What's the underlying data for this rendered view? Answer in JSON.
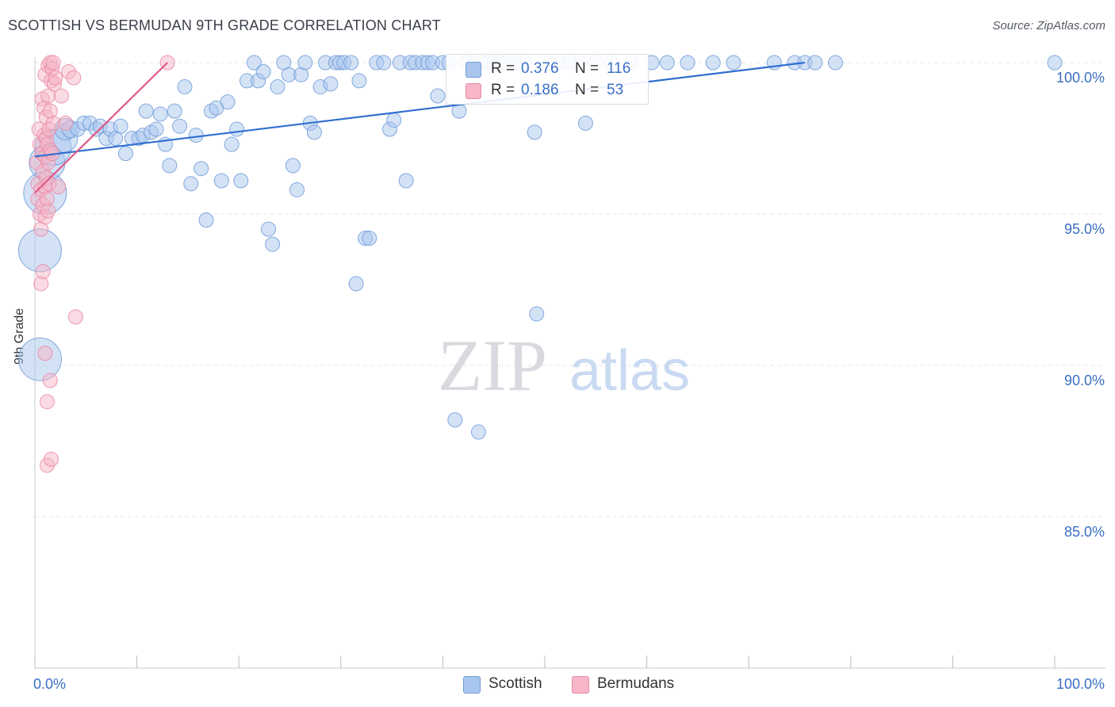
{
  "title": "SCOTTISH VS BERMUDAN 9TH GRADE CORRELATION CHART",
  "source": "Source: ZipAtlas.com",
  "watermark": {
    "zip": "ZIP",
    "atlas": "atlas"
  },
  "colors": {
    "scottish_fill": "#a9c6ee",
    "scottish_stroke": "#6f9bd8",
    "scottish_line": "#2f6fd0",
    "bermudan_fill": "#f6b6c8",
    "bermudan_stroke": "#e98aa5",
    "bermudan_line": "#e0588a",
    "tick_label": "#3b6fc4",
    "grid": "#e3e5ea"
  },
  "legend_top": [
    {
      "r_label": "R =",
      "r_value": "0.376",
      "n_label": "N =",
      "n_value": "116"
    },
    {
      "r_label": "R =",
      "r_value": "0.186",
      "n_label": "N =",
      "n_value": "53"
    }
  ],
  "legend_bottom": [
    {
      "label": "Scottish"
    },
    {
      "label": "Bermudans"
    }
  ],
  "chart_data": {
    "type": "scatter",
    "title": "SCOTTISH VS BERMUDAN 9TH GRADE CORRELATION CHART",
    "xlabel": "",
    "ylabel": "9th Grade",
    "xlim": [
      0,
      100
    ],
    "ylim": [
      80.0,
      100.8
    ],
    "x_tick_labels": [
      "0.0%",
      "100.0%"
    ],
    "y_ticks": [
      85.0,
      90.0,
      95.0,
      100.0
    ],
    "y_tick_labels": [
      "85.0%",
      "90.0%",
      "95.0%",
      "100.0%"
    ],
    "grid": true,
    "series": [
      {
        "name": "Scottish",
        "R": 0.376,
        "N": 116,
        "trendline": {
          "x": [
            0.0,
            75.5
          ],
          "y": [
            96.9,
            100.0
          ]
        },
        "points": [
          [
            0.5,
            93.8,
            3
          ],
          [
            0.5,
            90.2,
            3
          ],
          [
            1.0,
            95.7,
            3
          ],
          [
            1.2,
            96.7,
            2.5
          ],
          [
            1.8,
            97.2,
            2.5
          ],
          [
            2.8,
            97.5,
            2
          ],
          [
            3.0,
            97.8,
            1.5
          ],
          [
            3.5,
            97.8,
            1.2
          ],
          [
            4.2,
            97.8,
            1
          ],
          [
            4.8,
            98.0,
            1
          ],
          [
            5.4,
            98.0,
            1
          ],
          [
            6.0,
            97.8,
            1
          ],
          [
            6.4,
            97.9,
            1
          ],
          [
            7.0,
            97.5,
            1
          ],
          [
            7.4,
            97.8,
            1
          ],
          [
            7.9,
            97.5,
            1
          ],
          [
            8.4,
            97.9,
            1
          ],
          [
            8.9,
            97.0,
            1
          ],
          [
            9.5,
            97.5,
            1
          ],
          [
            10.2,
            97.5,
            1
          ],
          [
            10.6,
            97.6,
            1
          ],
          [
            10.9,
            98.4,
            1
          ],
          [
            11.4,
            97.7,
            1
          ],
          [
            11.9,
            97.8,
            1
          ],
          [
            12.3,
            98.3,
            1
          ],
          [
            12.8,
            97.3,
            1
          ],
          [
            13.2,
            96.6,
            1
          ],
          [
            13.7,
            98.4,
            1
          ],
          [
            14.2,
            97.9,
            1
          ],
          [
            14.7,
            99.2,
            1
          ],
          [
            15.3,
            96.0,
            1
          ],
          [
            15.8,
            97.6,
            1
          ],
          [
            16.3,
            96.5,
            1
          ],
          [
            16.8,
            94.8,
            1
          ],
          [
            17.3,
            98.4,
            1
          ],
          [
            17.8,
            98.5,
            1
          ],
          [
            18.3,
            96.1,
            1
          ],
          [
            18.9,
            98.7,
            1
          ],
          [
            19.3,
            97.3,
            1
          ],
          [
            19.8,
            97.8,
            1
          ],
          [
            20.2,
            96.1,
            1
          ],
          [
            20.8,
            99.4,
            1
          ],
          [
            21.5,
            100.0,
            1
          ],
          [
            21.9,
            99.4,
            1
          ],
          [
            22.4,
            99.7,
            1
          ],
          [
            22.9,
            94.5,
            1
          ],
          [
            23.3,
            94.0,
            1
          ],
          [
            23.8,
            99.2,
            1
          ],
          [
            24.4,
            100.0,
            1
          ],
          [
            24.9,
            99.6,
            1
          ],
          [
            25.3,
            96.6,
            1
          ],
          [
            25.7,
            95.8,
            1
          ],
          [
            26.1,
            99.6,
            1
          ],
          [
            26.5,
            100.0,
            1
          ],
          [
            27.0,
            98.0,
            1
          ],
          [
            27.4,
            97.7,
            1
          ],
          [
            28.0,
            99.2,
            1
          ],
          [
            28.5,
            100.0,
            1
          ],
          [
            29.0,
            99.3,
            1
          ],
          [
            29.5,
            100.0,
            1
          ],
          [
            29.9,
            100.0,
            1
          ],
          [
            30.3,
            100.0,
            1
          ],
          [
            31.0,
            100.0,
            1
          ],
          [
            31.5,
            92.7,
            1
          ],
          [
            31.8,
            99.4,
            1
          ],
          [
            32.4,
            94.2,
            1
          ],
          [
            32.8,
            94.2,
            1
          ],
          [
            33.5,
            100.0,
            1
          ],
          [
            34.2,
            100.0,
            1
          ],
          [
            34.8,
            97.8,
            1
          ],
          [
            35.2,
            98.1,
            1
          ],
          [
            35.8,
            100.0,
            1
          ],
          [
            36.4,
            96.1,
            1
          ],
          [
            36.8,
            100.0,
            1
          ],
          [
            37.3,
            100.0,
            1
          ],
          [
            38.0,
            100.0,
            1
          ],
          [
            38.5,
            100.0,
            1
          ],
          [
            39.0,
            100.0,
            1
          ],
          [
            39.5,
            98.9,
            1
          ],
          [
            40.0,
            100.0,
            1
          ],
          [
            40.6,
            100.0,
            1
          ],
          [
            41.2,
            88.2,
            1
          ],
          [
            41.6,
            98.4,
            1
          ],
          [
            42.3,
            100.0,
            1
          ],
          [
            43.0,
            100.0,
            1
          ],
          [
            43.5,
            87.8,
            1
          ],
          [
            44.0,
            100.0,
            1
          ],
          [
            44.5,
            100.0,
            1
          ],
          [
            45.0,
            100.0,
            1
          ],
          [
            45.5,
            100.0,
            1
          ],
          [
            46.2,
            100.0,
            1
          ],
          [
            47.0,
            100.0,
            1
          ],
          [
            48.0,
            100.0,
            1
          ],
          [
            49.0,
            97.7,
            1
          ],
          [
            49.2,
            91.7,
            1
          ],
          [
            50.5,
            100.0,
            1
          ],
          [
            51.5,
            100.0,
            1
          ],
          [
            52.5,
            100.0,
            1
          ],
          [
            53.5,
            100.0,
            1
          ],
          [
            54.0,
            98.0,
            1
          ],
          [
            55.0,
            100.0,
            1
          ],
          [
            56.5,
            100.0,
            1
          ],
          [
            58.5,
            100.0,
            1
          ],
          [
            60.5,
            100.0,
            1
          ],
          [
            62.0,
            100.0,
            1
          ],
          [
            64.0,
            100.0,
            1
          ],
          [
            66.5,
            100.0,
            1
          ],
          [
            68.5,
            100.0,
            1
          ],
          [
            72.5,
            100.0,
            1
          ],
          [
            74.5,
            100.0,
            1
          ],
          [
            75.5,
            100.0,
            1
          ],
          [
            76.5,
            100.0,
            1
          ],
          [
            78.5,
            100.0,
            1
          ],
          [
            100.0,
            100.0,
            1
          ]
        ]
      },
      {
        "name": "Bermudans",
        "R": 0.186,
        "N": 53,
        "trendline": {
          "x": [
            0.0,
            13.0
          ],
          "y": [
            95.7,
            100.0
          ]
        },
        "points": [
          [
            0.2,
            96.7,
            1
          ],
          [
            0.3,
            96.0,
            1
          ],
          [
            0.3,
            95.5,
            1
          ],
          [
            0.4,
            97.8,
            1
          ],
          [
            0.5,
            97.3,
            1
          ],
          [
            0.5,
            95.0,
            1
          ],
          [
            0.6,
            95.8,
            1
          ],
          [
            0.6,
            94.5,
            1
          ],
          [
            0.6,
            92.7,
            1
          ],
          [
            0.7,
            98.8,
            1
          ],
          [
            0.7,
            97.0,
            1
          ],
          [
            0.8,
            96.4,
            1
          ],
          [
            0.8,
            95.3,
            1
          ],
          [
            0.8,
            93.1,
            1
          ],
          [
            0.9,
            98.5,
            1
          ],
          [
            0.9,
            97.6,
            1
          ],
          [
            1.0,
            99.6,
            1
          ],
          [
            1.0,
            96.9,
            1
          ],
          [
            1.0,
            95.9,
            1
          ],
          [
            1.0,
            94.9,
            1
          ],
          [
            1.0,
            90.4,
            1
          ],
          [
            1.1,
            98.2,
            1
          ],
          [
            1.1,
            97.5,
            1
          ],
          [
            1.1,
            96.2,
            1
          ],
          [
            1.2,
            97.3,
            1
          ],
          [
            1.2,
            95.5,
            1
          ],
          [
            1.2,
            88.8,
            1
          ],
          [
            1.2,
            86.7,
            1
          ],
          [
            1.3,
            99.9,
            1
          ],
          [
            1.3,
            98.9,
            1
          ],
          [
            1.3,
            96.7,
            1
          ],
          [
            1.3,
            95.1,
            1
          ],
          [
            1.4,
            97.8,
            1
          ],
          [
            1.4,
            96.0,
            1
          ],
          [
            1.5,
            100.0,
            1
          ],
          [
            1.5,
            98.4,
            1
          ],
          [
            1.5,
            97.1,
            1
          ],
          [
            1.5,
            89.5,
            1
          ],
          [
            1.6,
            99.4,
            1
          ],
          [
            1.6,
            86.9,
            1
          ],
          [
            1.7,
            99.8,
            1
          ],
          [
            1.7,
            97.0,
            1
          ],
          [
            1.8,
            100.0,
            1
          ],
          [
            1.8,
            98.0,
            1
          ],
          [
            1.9,
            99.3,
            1
          ],
          [
            2.0,
            99.5,
            1
          ],
          [
            2.3,
            95.9,
            1
          ],
          [
            2.6,
            98.9,
            1
          ],
          [
            3.0,
            98.0,
            1
          ],
          [
            3.3,
            99.7,
            1
          ],
          [
            3.8,
            99.5,
            1
          ],
          [
            4.0,
            91.6,
            1
          ],
          [
            13.0,
            100.0,
            1
          ]
        ]
      }
    ]
  }
}
